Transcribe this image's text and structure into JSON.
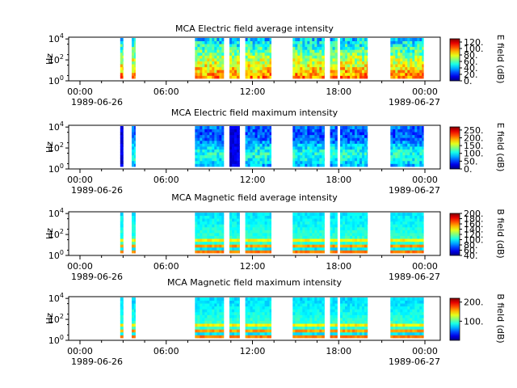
{
  "chart_data": [
    {
      "type": "heatmap",
      "title": "MCA  Electric field average intensity",
      "ylabel": "Hz",
      "y_ticks": [
        {
          "base": "10",
          "exp": "0"
        },
        {
          "base": "10",
          "exp": "2"
        },
        {
          "base": "10",
          "exp": "4"
        }
      ],
      "x_ticks": [
        "00:00",
        "06:00",
        "12:00",
        "18:00",
        "00:00"
      ],
      "x_dates": [
        "1989-06-26",
        "1989-06-27"
      ],
      "colorbar_label": "E field (dB)",
      "colorbar_ticks": [
        "0.",
        "20.",
        "40.",
        "60.",
        "80.",
        "100.",
        "120."
      ],
      "colorbar_range": [
        0,
        130
      ],
      "data_segments_hours": [
        [
          2.8,
          3.0
        ],
        [
          3.6,
          3.85
        ],
        [
          8.0,
          10.0
        ],
        [
          10.4,
          11.1
        ],
        [
          11.5,
          13.3
        ],
        [
          14.8,
          17.0
        ],
        [
          17.4,
          17.9
        ],
        [
          18.1,
          20.0
        ],
        [
          21.6,
          23.9
        ]
      ]
    },
    {
      "type": "heatmap",
      "title": "MCA  Electric field maximum intensity",
      "ylabel": "Hz",
      "y_ticks": [
        {
          "base": "10",
          "exp": "0"
        },
        {
          "base": "10",
          "exp": "2"
        },
        {
          "base": "10",
          "exp": "4"
        }
      ],
      "x_ticks": [
        "00:00",
        "06:00",
        "12:00",
        "18:00",
        "00:00"
      ],
      "x_dates": [
        "1989-06-26",
        "1989-06-27"
      ],
      "colorbar_label": "E field (dB)",
      "colorbar_ticks": [
        "0.",
        "50.",
        "100.",
        "150.",
        "200.",
        "250."
      ],
      "colorbar_range": [
        0,
        270
      ],
      "data_segments_hours": [
        [
          2.8,
          3.0
        ],
        [
          3.6,
          3.85
        ],
        [
          8.0,
          10.0
        ],
        [
          10.4,
          11.1
        ],
        [
          11.5,
          13.3
        ],
        [
          14.8,
          17.0
        ],
        [
          17.4,
          17.9
        ],
        [
          18.1,
          20.0
        ],
        [
          21.6,
          23.9
        ]
      ]
    },
    {
      "type": "heatmap",
      "title": "MCA  Magnetic field average intensity",
      "ylabel": "Hz",
      "y_ticks": [
        {
          "base": "10",
          "exp": "0"
        },
        {
          "base": "10",
          "exp": "2"
        },
        {
          "base": "10",
          "exp": "4"
        }
      ],
      "x_ticks": [
        "00:00",
        "06:00",
        "12:00",
        "18:00",
        "00:00"
      ],
      "x_dates": [
        "1989-06-26",
        "1989-06-27"
      ],
      "colorbar_label": "B field (dB)",
      "colorbar_ticks": [
        "40.",
        "60.",
        "80.",
        "100.",
        "120.",
        "140.",
        "160.",
        "180.",
        "200."
      ],
      "colorbar_range": [
        40,
        200
      ],
      "data_segments_hours": [
        [
          2.8,
          3.0
        ],
        [
          3.6,
          3.85
        ],
        [
          8.0,
          10.0
        ],
        [
          10.4,
          11.1
        ],
        [
          11.5,
          13.3
        ],
        [
          14.8,
          17.0
        ],
        [
          17.4,
          17.9
        ],
        [
          18.1,
          20.0
        ],
        [
          21.6,
          23.9
        ]
      ]
    },
    {
      "type": "heatmap",
      "title": "MCA  Magnetic field maximum intensity",
      "ylabel": "Hz",
      "y_ticks": [
        {
          "base": "10",
          "exp": "0"
        },
        {
          "base": "10",
          "exp": "2"
        },
        {
          "base": "10",
          "exp": "4"
        }
      ],
      "x_ticks": [
        "00:00",
        "06:00",
        "12:00",
        "18:00",
        "00:00"
      ],
      "x_dates": [
        "1989-06-26",
        "1989-06-27"
      ],
      "colorbar_label": "B field (dB)",
      "colorbar_ticks": [
        "100.",
        "200."
      ],
      "colorbar_range": [
        0,
        220
      ],
      "data_segments_hours": [
        [
          2.8,
          3.0
        ],
        [
          3.6,
          3.85
        ],
        [
          8.0,
          10.0
        ],
        [
          10.4,
          11.1
        ],
        [
          11.5,
          13.3
        ],
        [
          14.8,
          17.0
        ],
        [
          17.4,
          17.9
        ],
        [
          18.1,
          20.0
        ],
        [
          21.6,
          23.9
        ]
      ]
    }
  ]
}
